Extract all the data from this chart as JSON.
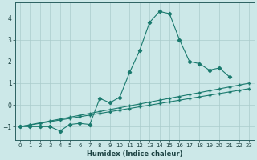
{
  "xlabel": "Humidex (Indice chaleur)",
  "xlim": [
    -0.5,
    23.5
  ],
  "ylim": [
    -1.6,
    4.7
  ],
  "yticks": [
    -1,
    0,
    1,
    2,
    3,
    4
  ],
  "xticks": [
    0,
    1,
    2,
    3,
    4,
    5,
    6,
    7,
    8,
    9,
    10,
    11,
    12,
    13,
    14,
    15,
    16,
    17,
    18,
    19,
    20,
    21,
    22,
    23
  ],
  "bg_color": "#cce8e8",
  "line_color": "#1a7a6e",
  "grid_color": "#aacccc",
  "line1_x": [
    0,
    1,
    2,
    3,
    4,
    5,
    6,
    7,
    8,
    9,
    10,
    11,
    12,
    13,
    14,
    15,
    16,
    17,
    18,
    19,
    20,
    21
  ],
  "line1_y": [
    -1,
    -1,
    -1,
    -1,
    -1.2,
    -0.9,
    -0.85,
    -0.9,
    0.3,
    0.1,
    0.35,
    1.5,
    2.5,
    3.8,
    4.3,
    4.2,
    3.0,
    2.0,
    1.9,
    1.6,
    1.7,
    1.3
  ],
  "line2_x": [
    0,
    1,
    2,
    3,
    4,
    5,
    6,
    7,
    8,
    9,
    10,
    11,
    12,
    13,
    14,
    15,
    16,
    17,
    18,
    19,
    20,
    21,
    22,
    23
  ],
  "line2_y": [
    -1.0,
    -0.913,
    -0.826,
    -0.739,
    -0.652,
    -0.565,
    -0.478,
    -0.391,
    -0.304,
    -0.217,
    -0.13,
    -0.043,
    0.043,
    0.13,
    0.217,
    0.304,
    0.391,
    0.478,
    0.565,
    0.652,
    0.739,
    0.826,
    0.913,
    1.0
  ],
  "line3_x": [
    0,
    1,
    2,
    3,
    4,
    5,
    6,
    7,
    8,
    9,
    10,
    11,
    12,
    13,
    14,
    15,
    16,
    17,
    18,
    19,
    20,
    21,
    22,
    23
  ],
  "line3_y": [
    -1.0,
    -0.924,
    -0.848,
    -0.772,
    -0.696,
    -0.62,
    -0.543,
    -0.467,
    -0.391,
    -0.315,
    -0.239,
    -0.163,
    -0.087,
    -0.011,
    0.065,
    0.141,
    0.217,
    0.293,
    0.37,
    0.446,
    0.522,
    0.598,
    0.674,
    0.75
  ]
}
